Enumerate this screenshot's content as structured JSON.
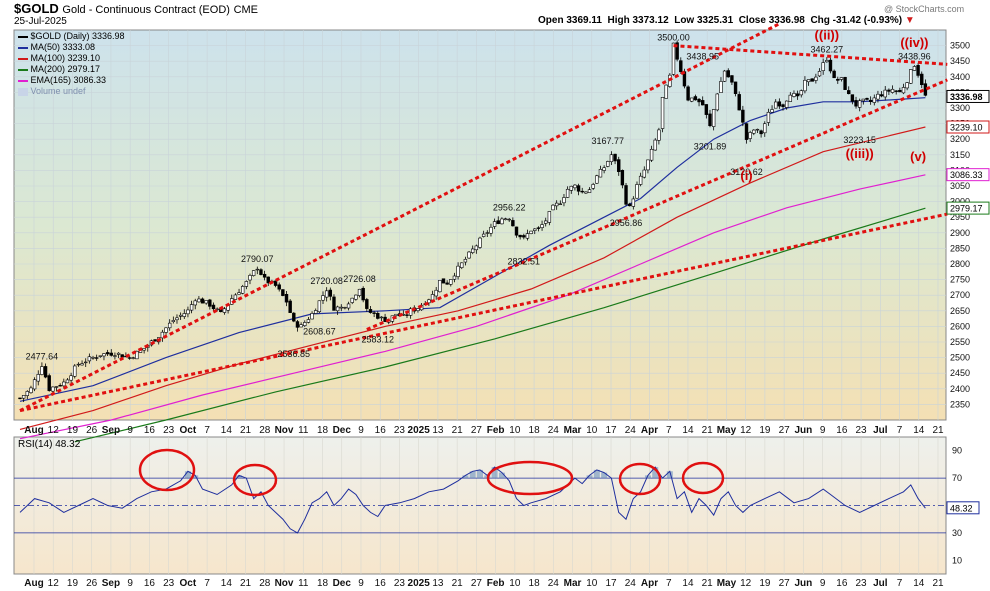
{
  "header": {
    "symbol": "$GOLD",
    "name": "Gold - Continuous Contract (EOD)",
    "exchange": "CME",
    "date": "25-Jul-2025",
    "watermark": "@ StockCharts.com",
    "open": "Open 3369.11",
    "high": "High 3373.12",
    "low": "Low 3325.31",
    "close": "Close 3336.98",
    "chg": "Chg -31.42 (-0.93%)",
    "chg_arrow": "▼"
  },
  "legend": [
    {
      "label": "$GOLD (Daily) 3336.98",
      "color": "#000000"
    },
    {
      "label": "MA(50) 3333.08",
      "color": "#1f2f9e"
    },
    {
      "label": "MA(100) 3239.10",
      "color": "#d11a1a"
    },
    {
      "label": "MA(200) 2979.17",
      "color": "#1a7a1a"
    },
    {
      "label": "EMA(165) 3086.33",
      "color": "#e020d0"
    },
    {
      "label": "Volume undef",
      "color": "#9db0d0"
    }
  ],
  "chart_data": [
    {
      "type": "candlestick",
      "title": "$GOLD (Daily)",
      "ylim": [
        2300,
        3550
      ],
      "y_ticks": [
        2350,
        2400,
        2450,
        2500,
        2550,
        2600,
        2650,
        2700,
        2750,
        2800,
        2850,
        2900,
        2950,
        3000,
        3050,
        3100,
        3150,
        3200,
        3250,
        3300,
        3350,
        3400,
        3450,
        3500
      ],
      "x_tick_labels": [
        "Aug",
        "12",
        "19",
        "26",
        "Sep",
        "9",
        "16",
        "23",
        "Oct",
        "7",
        "14",
        "21",
        "28",
        "Nov",
        "11",
        "18",
        "Dec",
        "9",
        "16",
        "23",
        "2025",
        "13",
        "21",
        "27",
        "Feb",
        "10",
        "18",
        "24",
        "Mar",
        "10",
        "17",
        "24",
        "Apr",
        "7",
        "14",
        "21",
        "May",
        "12",
        "19",
        "27",
        "Jun",
        "9",
        "16",
        "23",
        "Jul",
        "7",
        "14",
        "21"
      ],
      "price_path": [
        [
          0,
          2370
        ],
        [
          3,
          2400
        ],
        [
          6,
          2478
        ],
        [
          8,
          2400
        ],
        [
          12,
          2420
        ],
        [
          16,
          2480
        ],
        [
          22,
          2510
        ],
        [
          26,
          2515
        ],
        [
          30,
          2500
        ],
        [
          34,
          2530
        ],
        [
          38,
          2570
        ],
        [
          42,
          2620
        ],
        [
          46,
          2650
        ],
        [
          48,
          2690
        ],
        [
          52,
          2670
        ],
        [
          55,
          2640
        ],
        [
          58,
          2690
        ],
        [
          62,
          2740
        ],
        [
          65,
          2790
        ],
        [
          67,
          2750
        ],
        [
          70,
          2730
        ],
        [
          73,
          2680
        ],
        [
          75,
          2610
        ],
        [
          77,
          2600
        ],
        [
          80,
          2640
        ],
        [
          82,
          2680
        ],
        [
          84,
          2720
        ],
        [
          86,
          2660
        ],
        [
          88,
          2660
        ],
        [
          91,
          2690
        ],
        [
          93,
          2726
        ],
        [
          95,
          2650
        ],
        [
          97,
          2640
        ],
        [
          99,
          2625
        ],
        [
          101,
          2620
        ],
        [
          103,
          2640
        ],
        [
          105,
          2630
        ],
        [
          107,
          2650
        ],
        [
          109,
          2660
        ],
        [
          111,
          2680
        ],
        [
          113,
          2700
        ],
        [
          115,
          2745
        ],
        [
          117,
          2740
        ],
        [
          119,
          2770
        ],
        [
          121,
          2800
        ],
        [
          123,
          2830
        ],
        [
          125,
          2860
        ],
        [
          127,
          2890
        ],
        [
          130,
          2930
        ],
        [
          132,
          2945
        ],
        [
          134,
          2950
        ],
        [
          136,
          2900
        ],
        [
          138,
          2880
        ],
        [
          140,
          2910
        ],
        [
          142,
          2910
        ],
        [
          144,
          2940
        ],
        [
          146,
          2980
        ],
        [
          148,
          3000
        ],
        [
          150,
          3040
        ],
        [
          152,
          3050
        ],
        [
          154,
          3030
        ],
        [
          156,
          3040
        ],
        [
          158,
          3080
        ],
        [
          160,
          3110
        ],
        [
          162,
          3150
        ],
        [
          164,
          3100
        ],
        [
          166,
          3000
        ],
        [
          167,
          2980
        ],
        [
          169,
          3050
        ],
        [
          171,
          3100
        ],
        [
          173,
          3160
        ],
        [
          175,
          3230
        ],
        [
          176,
          3330
        ],
        [
          178,
          3400
        ],
        [
          179,
          3500
        ],
        [
          181,
          3420
        ],
        [
          183,
          3330
        ],
        [
          185,
          3330
        ],
        [
          187,
          3310
        ],
        [
          189,
          3240
        ],
        [
          191,
          3350
        ],
        [
          193,
          3420
        ],
        [
          195,
          3380
        ],
        [
          197,
          3300
        ],
        [
          199,
          3200
        ],
        [
          201,
          3230
        ],
        [
          203,
          3220
        ],
        [
          205,
          3280
        ],
        [
          207,
          3320
        ],
        [
          209,
          3310
        ],
        [
          211,
          3350
        ],
        [
          213,
          3330
        ],
        [
          215,
          3380
        ],
        [
          217,
          3390
        ],
        [
          219,
          3420
        ],
        [
          221,
          3460
        ],
        [
          223,
          3390
        ],
        [
          225,
          3390
        ],
        [
          227,
          3340
        ],
        [
          229,
          3310
        ],
        [
          231,
          3320
        ],
        [
          233,
          3320
        ],
        [
          235,
          3340
        ],
        [
          237,
          3350
        ],
        [
          239,
          3360
        ],
        [
          241,
          3350
        ],
        [
          243,
          3390
        ],
        [
          245,
          3440
        ],
        [
          247,
          3380
        ],
        [
          248,
          3337
        ]
      ],
      "price_labels": [
        {
          "text": "2477.64",
          "x": 6,
          "y": 2478
        },
        {
          "text": "2790.07",
          "x": 65,
          "y": 2790
        },
        {
          "text": "2536.85",
          "x": 75,
          "y": 2537
        },
        {
          "text": "2608.67",
          "x": 82,
          "y": 2609
        },
        {
          "text": "2720.08",
          "x": 84,
          "y": 2720
        },
        {
          "text": "2726.08",
          "x": 93,
          "y": 2726
        },
        {
          "text": "2583.12",
          "x": 98,
          "y": 2583
        },
        {
          "text": "2956.22",
          "x": 134,
          "y": 2956
        },
        {
          "text": "2832.51",
          "x": 138,
          "y": 2833
        },
        {
          "text": "3167.77",
          "x": 161,
          "y": 3168
        },
        {
          "text": "2956.86",
          "x": 166,
          "y": 2957
        },
        {
          "text": "3500.00",
          "x": 179,
          "y": 3500
        },
        {
          "text": "3438.95",
          "x": 187,
          "y": 3439
        },
        {
          "text": "3201.89",
          "x": 189,
          "y": 3202
        },
        {
          "text": "3120.62",
          "x": 199,
          "y": 3121
        },
        {
          "text": "3462.27",
          "x": 221,
          "y": 3462
        },
        {
          "text": "3223.15",
          "x": 230,
          "y": 3223
        },
        {
          "text": "3438.96",
          "x": 245,
          "y": 3439
        }
      ],
      "wave_labels": [
        "(i)",
        "(ii)",
        "(iii)",
        "(iv)",
        "(v)"
      ],
      "moving_averages": [
        {
          "name": "MA(50)",
          "last": 3333.08,
          "color": "#1f2f9e",
          "points": [
            [
              0,
              2360
            ],
            [
              20,
              2410
            ],
            [
              40,
              2500
            ],
            [
              60,
              2580
            ],
            [
              80,
              2640
            ],
            [
              100,
              2650
            ],
            [
              115,
              2660
            ],
            [
              130,
              2760
            ],
            [
              145,
              2860
            ],
            [
              160,
              2950
            ],
            [
              170,
              3010
            ],
            [
              180,
              3110
            ],
            [
              190,
              3200
            ],
            [
              200,
              3260
            ],
            [
              210,
              3300
            ],
            [
              220,
              3320
            ],
            [
              230,
              3320
            ],
            [
              248,
              3333
            ]
          ]
        },
        {
          "name": "EMA(165)",
          "last": 3086.33,
          "color": "#e020d0",
          "points": [
            [
              0,
              2240
            ],
            [
              25,
              2300
            ],
            [
              50,
              2380
            ],
            [
              75,
              2450
            ],
            [
              100,
              2520
            ],
            [
              125,
              2600
            ],
            [
              150,
              2700
            ],
            [
              170,
              2800
            ],
            [
              190,
              2900
            ],
            [
              210,
              2980
            ],
            [
              230,
              3040
            ],
            [
              248,
              3086
            ]
          ]
        },
        {
          "name": "MA(100)",
          "last": 3239.1,
          "color": "#d11a1a",
          "points": [
            [
              0,
              2270
            ],
            [
              20,
              2330
            ],
            [
              40,
              2410
            ],
            [
              60,
              2480
            ],
            [
              80,
              2540
            ],
            [
              100,
              2600
            ],
            [
              120,
              2650
            ],
            [
              140,
              2720
            ],
            [
              160,
              2820
            ],
            [
              180,
              2950
            ],
            [
              200,
              3060
            ],
            [
              220,
              3160
            ],
            [
              248,
              3239
            ]
          ]
        },
        {
          "name": "MA(200)",
          "last": 2979.17,
          "color": "#1a7a1a",
          "points": [
            [
              15,
              2230
            ],
            [
              40,
              2300
            ],
            [
              70,
              2390
            ],
            [
              100,
              2470
            ],
            [
              130,
              2560
            ],
            [
              160,
              2660
            ],
            [
              190,
              2770
            ],
            [
              220,
              2880
            ],
            [
              248,
              2979
            ]
          ]
        }
      ],
      "trendlines": [
        {
          "from": [
            0,
            2330
          ],
          "to": [
            208,
            3570
          ]
        },
        {
          "from": [
            179,
            3500
          ],
          "to": [
            254,
            3440
          ]
        },
        {
          "from": [
            95,
            2590
          ],
          "to": [
            254,
            3390
          ]
        },
        {
          "from": [
            0,
            2330
          ],
          "to": [
            254,
            2960
          ]
        }
      ],
      "price_tags": [
        {
          "value": 3336.98,
          "text": "3336.98"
        },
        {
          "value": 3239.1,
          "text": "3239.10"
        },
        {
          "value": 3086.33,
          "text": "3086.33"
        },
        {
          "value": 2979.17,
          "text": "2979.17"
        }
      ]
    },
    {
      "type": "line",
      "title": "RSI(14) 48.32",
      "series_name": "RSI(14)",
      "last": 48.32,
      "ylim": [
        0,
        100
      ],
      "y_ticks": [
        10,
        30,
        50,
        70,
        90
      ],
      "levels": [
        70,
        50,
        30
      ],
      "points": [
        [
          0,
          45
        ],
        [
          4,
          55
        ],
        [
          8,
          52
        ],
        [
          12,
          45
        ],
        [
          16,
          50
        ],
        [
          20,
          55
        ],
        [
          24,
          50
        ],
        [
          28,
          48
        ],
        [
          32,
          55
        ],
        [
          36,
          60
        ],
        [
          40,
          62
        ],
        [
          44,
          68
        ],
        [
          46,
          75
        ],
        [
          48,
          72
        ],
        [
          50,
          62
        ],
        [
          54,
          58
        ],
        [
          58,
          65
        ],
        [
          60,
          72
        ],
        [
          62,
          70
        ],
        [
          64,
          55
        ],
        [
          66,
          60
        ],
        [
          68,
          50
        ],
        [
          70,
          45
        ],
        [
          72,
          40
        ],
        [
          74,
          33
        ],
        [
          76,
          30
        ],
        [
          78,
          40
        ],
        [
          80,
          52
        ],
        [
          82,
          55
        ],
        [
          84,
          60
        ],
        [
          86,
          50
        ],
        [
          88,
          55
        ],
        [
          90,
          62
        ],
        [
          92,
          58
        ],
        [
          94,
          50
        ],
        [
          96,
          45
        ],
        [
          98,
          42
        ],
        [
          100,
          50
        ],
        [
          104,
          52
        ],
        [
          108,
          55
        ],
        [
          112,
          60
        ],
        [
          116,
          62
        ],
        [
          120,
          68
        ],
        [
          122,
          72
        ],
        [
          124,
          75
        ],
        [
          126,
          76
        ],
        [
          128,
          72
        ],
        [
          130,
          78
        ],
        [
          132,
          74
        ],
        [
          134,
          68
        ],
        [
          136,
          55
        ],
        [
          138,
          50
        ],
        [
          140,
          52
        ],
        [
          144,
          55
        ],
        [
          148,
          60
        ],
        [
          150,
          65
        ],
        [
          152,
          70
        ],
        [
          154,
          66
        ],
        [
          156,
          72
        ],
        [
          158,
          76
        ],
        [
          160,
          74
        ],
        [
          162,
          70
        ],
        [
          164,
          45
        ],
        [
          166,
          40
        ],
        [
          168,
          55
        ],
        [
          170,
          60
        ],
        [
          172,
          72
        ],
        [
          174,
          78
        ],
        [
          176,
          70
        ],
        [
          178,
          75
        ],
        [
          180,
          55
        ],
        [
          182,
          60
        ],
        [
          184,
          45
        ],
        [
          186,
          55
        ],
        [
          188,
          50
        ],
        [
          190,
          43
        ],
        [
          192,
          55
        ],
        [
          194,
          60
        ],
        [
          196,
          50
        ],
        [
          198,
          45
        ],
        [
          200,
          50
        ],
        [
          204,
          55
        ],
        [
          208,
          60
        ],
        [
          212,
          52
        ],
        [
          216,
          55
        ],
        [
          220,
          62
        ],
        [
          222,
          58
        ],
        [
          226,
          50
        ],
        [
          230,
          45
        ],
        [
          234,
          50
        ],
        [
          238,
          55
        ],
        [
          242,
          60
        ],
        [
          244,
          65
        ],
        [
          246,
          55
        ],
        [
          248,
          48
        ]
      ],
      "highlight_ellipses": 5
    }
  ]
}
